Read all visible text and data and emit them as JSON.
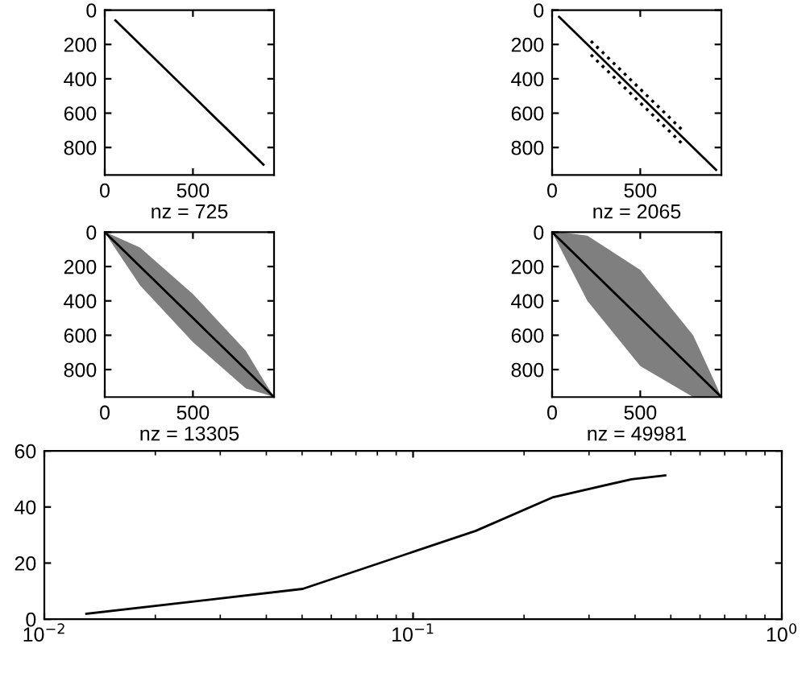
{
  "chart_data": [
    {
      "type": "line",
      "xlabel": "nz = 725",
      "xlim": [
        0,
        960
      ],
      "ylim": [
        960,
        0
      ],
      "xticks": [
        0,
        500
      ],
      "yticks": [
        0,
        200,
        400,
        600,
        800
      ],
      "series": [
        {
          "color": "#000000",
          "x": [
            60,
            900
          ],
          "values": [
            60,
            900
          ]
        }
      ]
    },
    {
      "type": "line",
      "xlabel": "nz = 2065",
      "xlim": [
        0,
        960
      ],
      "ylim": [
        960,
        0
      ],
      "xticks": [
        0,
        500
      ],
      "yticks": [
        0,
        200,
        400,
        600,
        800
      ],
      "series": [
        {
          "color": "#000000",
          "x": [
            40,
            930
          ],
          "values": [
            40,
            930
          ]
        },
        {
          "color": "#000000",
          "line_style": "dotted",
          "x": [
            220,
            750
          ],
          "values": [
            180,
            710
          ]
        },
        {
          "color": "#000000",
          "line_style": "dotted",
          "x": [
            220,
            750
          ],
          "values": [
            260,
            790
          ]
        }
      ]
    },
    {
      "type": "line",
      "xlabel": "nz = 13305",
      "xlim": [
        0,
        960
      ],
      "ylim": [
        960,
        0
      ],
      "xticks": [
        0,
        500
      ],
      "yticks": [
        0,
        200,
        400,
        600,
        800
      ],
      "series": [
        {
          "color": "#000000",
          "x": [
            0,
            50,
            200,
            500,
            800,
            900,
            960
          ],
          "values": [
            0,
            50,
            200,
            500,
            800,
            900,
            960
          ],
          "lower": [
            0,
            20,
            90,
            360,
            690,
            860,
            960
          ],
          "upper": [
            0,
            80,
            310,
            640,
            910,
            940,
            960
          ]
        }
      ]
    },
    {
      "type": "line",
      "xlabel": "nz = 49981",
      "xlim": [
        0,
        960
      ],
      "ylim": [
        960,
        0
      ],
      "xticks": [
        0,
        500
      ],
      "yticks": [
        0,
        200,
        400,
        600,
        800
      ],
      "series": [
        {
          "color": "#000000",
          "x": [
            0,
            50,
            200,
            500,
            800,
            930,
            960
          ],
          "values": [
            0,
            50,
            200,
            500,
            800,
            930,
            960
          ],
          "lower": [
            0,
            0,
            20,
            220,
            600,
            890,
            960
          ],
          "upper": [
            0,
            100,
            400,
            780,
            960,
            960,
            960
          ]
        }
      ]
    },
    {
      "type": "line",
      "log": "x",
      "xlim": [
        0.01,
        1
      ],
      "ylim": [
        0,
        60
      ],
      "xticks": [
        {
          "value": 0.01,
          "label": "10$^{−2}$"
        },
        {
          "value": 0.1,
          "label": "10$^{−1}$"
        },
        {
          "value": 1,
          "label": "10$^{0}$"
        }
      ],
      "yticks": [
        0,
        20,
        40,
        60
      ],
      "series": [
        {
          "color": "#000000",
          "x": [
            0.013,
            0.0502,
            0.148,
            0.24,
            0.391,
            0.483
          ],
          "values": [
            1.9,
            10.8,
            31.5,
            43.5,
            49.9,
            51.3
          ]
        }
      ]
    }
  ]
}
